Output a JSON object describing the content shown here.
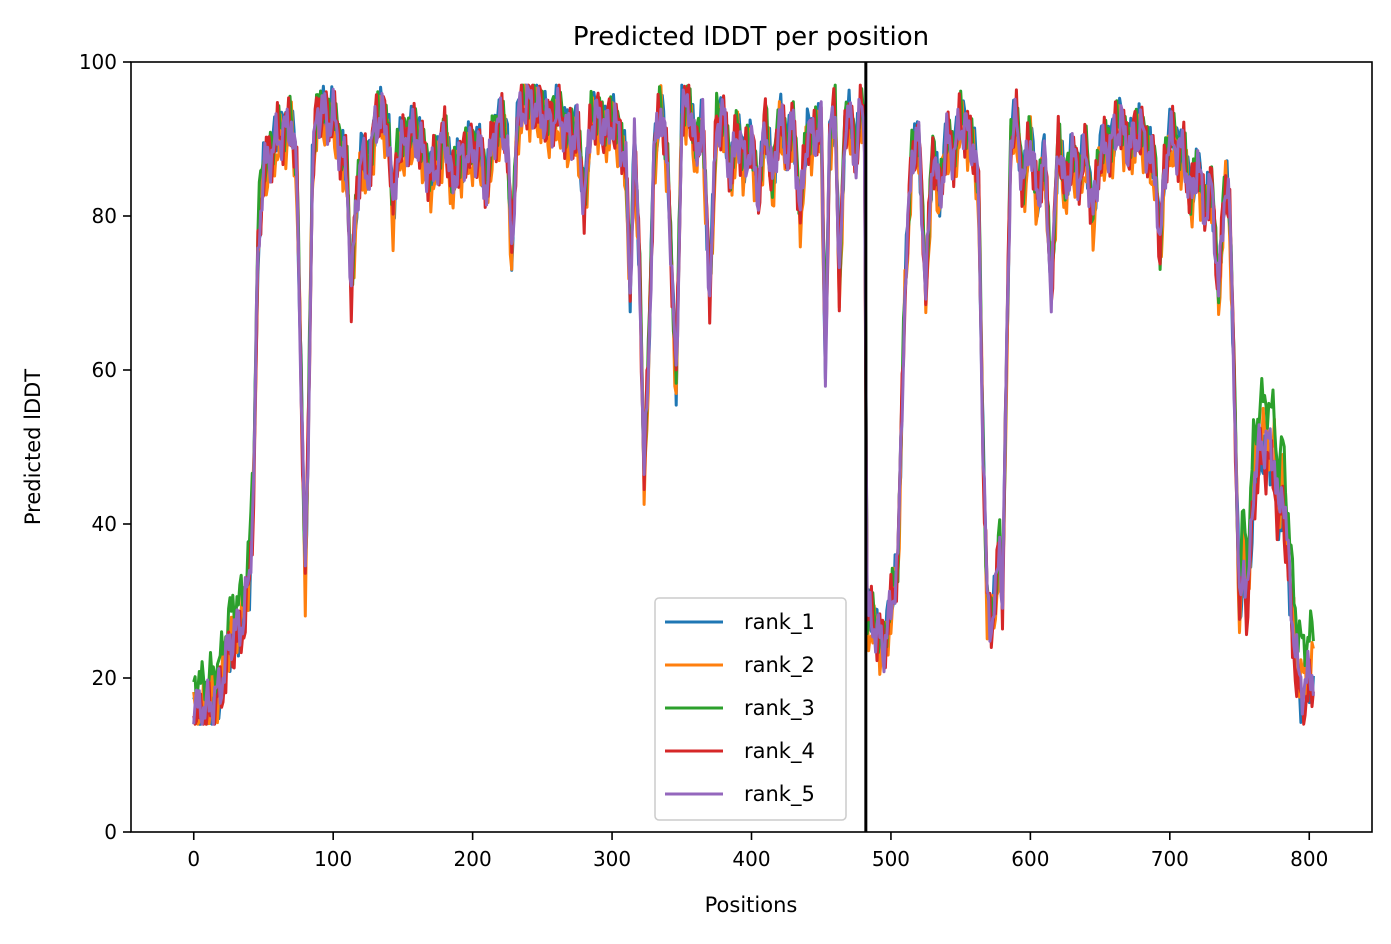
{
  "chart_data": {
    "type": "line",
    "title": "Predicted lDDT per position",
    "xlabel": "Positions",
    "ylabel": "Predicted lDDT",
    "xlim": [
      -45,
      845
    ],
    "ylim": [
      0,
      100
    ],
    "xticks": [
      0,
      100,
      200,
      300,
      400,
      500,
      600,
      700,
      800
    ],
    "yticks": [
      0,
      20,
      40,
      60,
      80,
      100
    ],
    "grid": false,
    "legend_position": "lower-right-center",
    "vline_x": 482,
    "series_order": [
      "rank_1",
      "rank_2",
      "rank_3",
      "rank_4",
      "rank_5"
    ],
    "base_curve": {
      "x": [
        0,
        5,
        10,
        15,
        20,
        25,
        30,
        35,
        40,
        43,
        46,
        50,
        55,
        60,
        65,
        70,
        74,
        78,
        80,
        82,
        85,
        88,
        92,
        96,
        100,
        105,
        110,
        113,
        116,
        120,
        125,
        130,
        135,
        140,
        143,
        146,
        150,
        155,
        160,
        165,
        170,
        175,
        180,
        185,
        190,
        195,
        200,
        205,
        210,
        215,
        220,
        225,
        228,
        232,
        236,
        240,
        245,
        250,
        255,
        260,
        265,
        270,
        275,
        280,
        285,
        290,
        295,
        300,
        305,
        310,
        313,
        316,
        320,
        323,
        326,
        330,
        335,
        340,
        343,
        346,
        350,
        355,
        360,
        365,
        370,
        375,
        380,
        385,
        390,
        395,
        400,
        405,
        410,
        415,
        420,
        425,
        430,
        435,
        440,
        445,
        450,
        453,
        456,
        460,
        463,
        467,
        470,
        475,
        478,
        481,
        483,
        487,
        490,
        495,
        500,
        505,
        510,
        515,
        520,
        525,
        530,
        535,
        540,
        545,
        550,
        555,
        560,
        563,
        566,
        569,
        572,
        575,
        578,
        580,
        583,
        586,
        590,
        595,
        600,
        605,
        610,
        615,
        620,
        625,
        630,
        635,
        640,
        645,
        650,
        655,
        660,
        665,
        670,
        675,
        680,
        685,
        690,
        693,
        696,
        700,
        705,
        710,
        715,
        720,
        725,
        730,
        735,
        740,
        743,
        746,
        750,
        753,
        756,
        760,
        765,
        770,
        775,
        778,
        781,
        785,
        788,
        792,
        796,
        800,
        803
      ],
      "y": [
        16,
        15.5,
        16,
        17,
        19,
        24,
        26,
        27,
        33,
        45,
        75,
        86,
        88,
        90,
        91,
        92,
        85,
        50,
        33,
        50,
        85,
        93,
        94,
        92,
        93,
        89,
        85,
        70,
        80,
        88,
        85,
        92,
        93,
        90,
        80,
        88,
        89,
        91,
        90,
        88,
        85,
        87,
        91,
        84,
        87,
        88,
        88,
        89,
        83,
        91,
        92,
        89,
        75,
        92,
        94,
        95,
        94,
        93,
        92,
        93,
        92,
        90,
        91,
        82,
        92,
        93,
        91,
        92,
        91,
        86,
        70,
        90,
        72,
        46,
        60,
        88,
        94,
        86,
        72,
        58,
        93,
        95,
        88,
        92,
        70,
        92,
        93,
        85,
        91,
        87,
        89,
        83,
        92,
        84,
        93,
        88,
        92,
        80,
        91,
        90,
        92,
        60,
        90,
        94,
        70,
        92,
        93,
        87,
        94,
        92,
        28,
        27,
        26,
        24,
        29,
        35,
        70,
        88,
        90,
        70,
        89,
        82,
        90,
        88,
        92,
        91,
        88,
        82,
        50,
        30,
        27,
        30,
        38,
        30,
        62,
        90,
        92,
        84,
        90,
        82,
        88,
        70,
        90,
        83,
        88,
        85,
        88,
        80,
        88,
        89,
        90,
        92,
        89,
        90,
        91,
        88,
        85,
        75,
        86,
        90,
        89,
        88,
        82,
        87,
        80,
        84,
        70,
        85,
        80,
        60,
        28,
        35,
        30,
        45,
        50,
        50,
        48,
        40,
        45,
        35,
        27,
        20,
        18,
        20,
        20
      ]
    },
    "series": [
      {
        "name": "rank_1",
        "color": "#1f77b4",
        "jitter_amp": 2.0,
        "dy": 0.5,
        "tail_offset": -1.5,
        "phase": 0.3
      },
      {
        "name": "rank_2",
        "color": "#ff7f0e",
        "jitter_amp": 2.2,
        "dy": -1.0,
        "tail_offset": 2.5,
        "phase": 1.7
      },
      {
        "name": "rank_3",
        "color": "#2ca02c",
        "jitter_amp": 1.8,
        "dy": 0.8,
        "tail_offset": 5.0,
        "phase": 2.9
      },
      {
        "name": "rank_4",
        "color": "#d62728",
        "jitter_amp": 2.4,
        "dy": 0.2,
        "tail_offset": -2.0,
        "phase": 4.1
      },
      {
        "name": "rank_5",
        "color": "#9467bd",
        "jitter_amp": 2.0,
        "dy": 0.0,
        "tail_offset": 0.5,
        "phase": 5.3
      }
    ]
  }
}
